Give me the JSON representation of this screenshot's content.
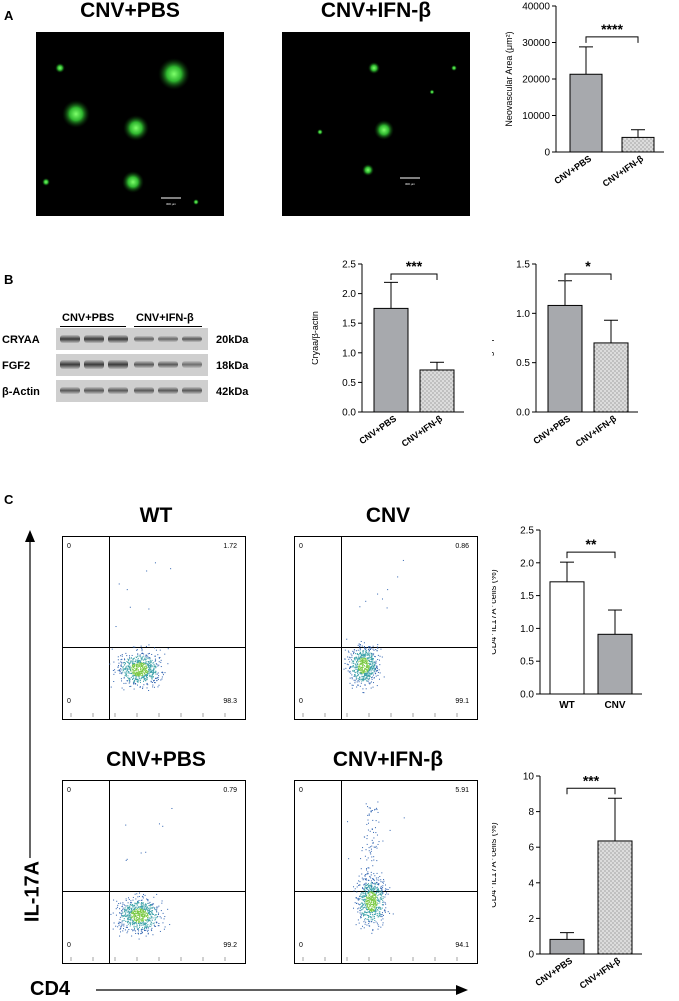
{
  "panel_A": {
    "letter": "A",
    "images": [
      {
        "title": "CNV+PBS",
        "scale_bar": "300 μm"
      },
      {
        "title": "CNV+IFN-β",
        "scale_bar": "300 μm"
      }
    ]
  },
  "panel_B": {
    "letter": "B",
    "blot_groups": [
      "CNV+PBS",
      "CNV+IFN-β"
    ],
    "blot_rows": [
      {
        "protein": "CRYAA",
        "size": "20kDa"
      },
      {
        "protein": "FGF2",
        "size": "18kDa"
      },
      {
        "protein": "β-Actin",
        "size": "42kDa"
      }
    ]
  },
  "panel_C": {
    "letter": "C",
    "y_axis_label": "IL-17A",
    "x_axis_label": "CD4",
    "plots": [
      {
        "title": "WT",
        "q_ul": "0",
        "q_ur": "1.72",
        "q_ll": "0",
        "q_lr": "98.3"
      },
      {
        "title": "CNV",
        "q_ul": "0",
        "q_ur": "0.86",
        "q_ll": "0",
        "q_lr": "99.1"
      },
      {
        "title": "CNV+PBS",
        "q_ul": "0",
        "q_ur": "0.79",
        "q_ll": "0",
        "q_lr": "99.2"
      },
      {
        "title": "CNV+IFN-β",
        "q_ul": "0",
        "q_ur": "5.91",
        "q_ll": "0",
        "q_lr": "94.1"
      }
    ]
  },
  "colors": {
    "dark_bar": "#a7a9ad",
    "dotted_bar": "#dcdcdc",
    "green": "#39d039",
    "dots": "#2e62b0"
  },
  "chart_data": [
    {
      "type": "bar",
      "categories": [
        "CNV+PBS",
        "CNV+IFN-β"
      ],
      "values": [
        21300,
        4000
      ],
      "errors": [
        7500,
        2100
      ],
      "ylabel": "Neovascular Area (μm²)",
      "ylim": [
        0,
        40000
      ],
      "yticks": [
        0,
        10000,
        20000,
        30000,
        40000
      ],
      "significance": "****",
      "fills": [
        "solid",
        "dotted"
      ]
    },
    {
      "type": "bar",
      "categories": [
        "CNV+PBS",
        "CNV+IFN-β"
      ],
      "values": [
        1.75,
        0.71
      ],
      "errors": [
        0.44,
        0.13
      ],
      "ylabel": "Cryaa/β-actin",
      "ylim": [
        0,
        2.5
      ],
      "yticks": [
        "0.0",
        "0.5",
        "1.0",
        "1.5",
        "2.0",
        "2.5"
      ],
      "significance": "***",
      "fills": [
        "solid",
        "dotted"
      ]
    },
    {
      "type": "bar",
      "categories": [
        "CNV+PBS",
        "CNV+IFN-β"
      ],
      "values": [
        1.08,
        0.7
      ],
      "errors": [
        0.25,
        0.23
      ],
      "ylabel": "Fgf2/β-actin",
      "ylim": [
        0,
        1.5
      ],
      "yticks": [
        "0.0",
        "0.5",
        "1.0",
        "1.5"
      ],
      "significance": "*",
      "fills": [
        "solid",
        "dotted"
      ]
    },
    {
      "type": "bar",
      "categories": [
        "WT",
        "CNV"
      ],
      "values": [
        1.71,
        0.91
      ],
      "errors": [
        0.3,
        0.37
      ],
      "ylabel": "CD4⁺IL17A⁺cells (%)",
      "ylim": [
        0,
        2.5
      ],
      "yticks": [
        "0.0",
        "0.5",
        "1.0",
        "1.5",
        "2.0",
        "2.5"
      ],
      "significance": "**",
      "fills": [
        "white",
        "solid"
      ]
    },
    {
      "type": "bar",
      "categories": [
        "CNV+PBS",
        "CNV+IFN-β"
      ],
      "values": [
        0.82,
        6.35
      ],
      "errors": [
        0.38,
        2.4
      ],
      "ylabel": "CD4⁺IL17A⁺cells (%)",
      "ylim": [
        0,
        10
      ],
      "yticks": [
        "0",
        "2",
        "4",
        "6",
        "8",
        "10"
      ],
      "significance": "***",
      "fills": [
        "solid",
        "dotted"
      ]
    }
  ]
}
